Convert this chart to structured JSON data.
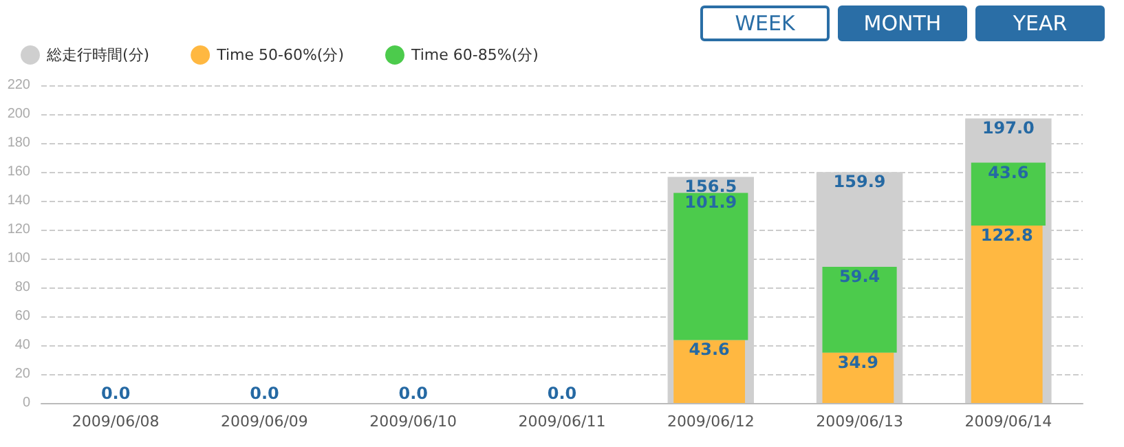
{
  "chart_data": {
    "type": "bar",
    "categories": [
      "2009/06/08",
      "2009/06/09",
      "2009/06/10",
      "2009/06/11",
      "2009/06/12",
      "2009/06/13",
      "2009/06/14"
    ],
    "series": [
      {
        "name": "総走行時間(分)",
        "color": "#cfcfcf",
        "values": [
          0,
          0,
          0,
          0,
          156.5,
          159.9,
          197.0
        ],
        "value_labels": [
          "0.0",
          "0.0",
          "0.0",
          "0.0",
          "156.5",
          "159.9",
          "197.0"
        ]
      },
      {
        "name": "Time 50-60%(分)",
        "color": "#ffb841",
        "values": [
          0,
          0,
          0,
          0,
          43.6,
          34.9,
          122.8
        ],
        "value_labels": [
          null,
          null,
          null,
          null,
          "43.6",
          "34.9",
          "122.8"
        ]
      },
      {
        "name": "Time 60-85%(分)",
        "color": "#4ccb4c",
        "values": [
          0,
          0,
          0,
          0,
          101.9,
          59.4,
          43.6
        ],
        "base": [
          null,
          null,
          null,
          null,
          43.6,
          34.9,
          122.8
        ],
        "value_labels": [
          null,
          null,
          null,
          null,
          "101.9",
          "59.4",
          "43.6"
        ]
      }
    ],
    "ylim": [
      0,
      220
    ],
    "yticks": [
      0,
      20,
      40,
      60,
      80,
      100,
      120,
      140,
      160,
      180,
      200,
      220
    ],
    "grid": "y",
    "legend": "top left",
    "annotations": [
      "WEEK",
      "MONTH",
      "YEAR"
    ]
  }
}
